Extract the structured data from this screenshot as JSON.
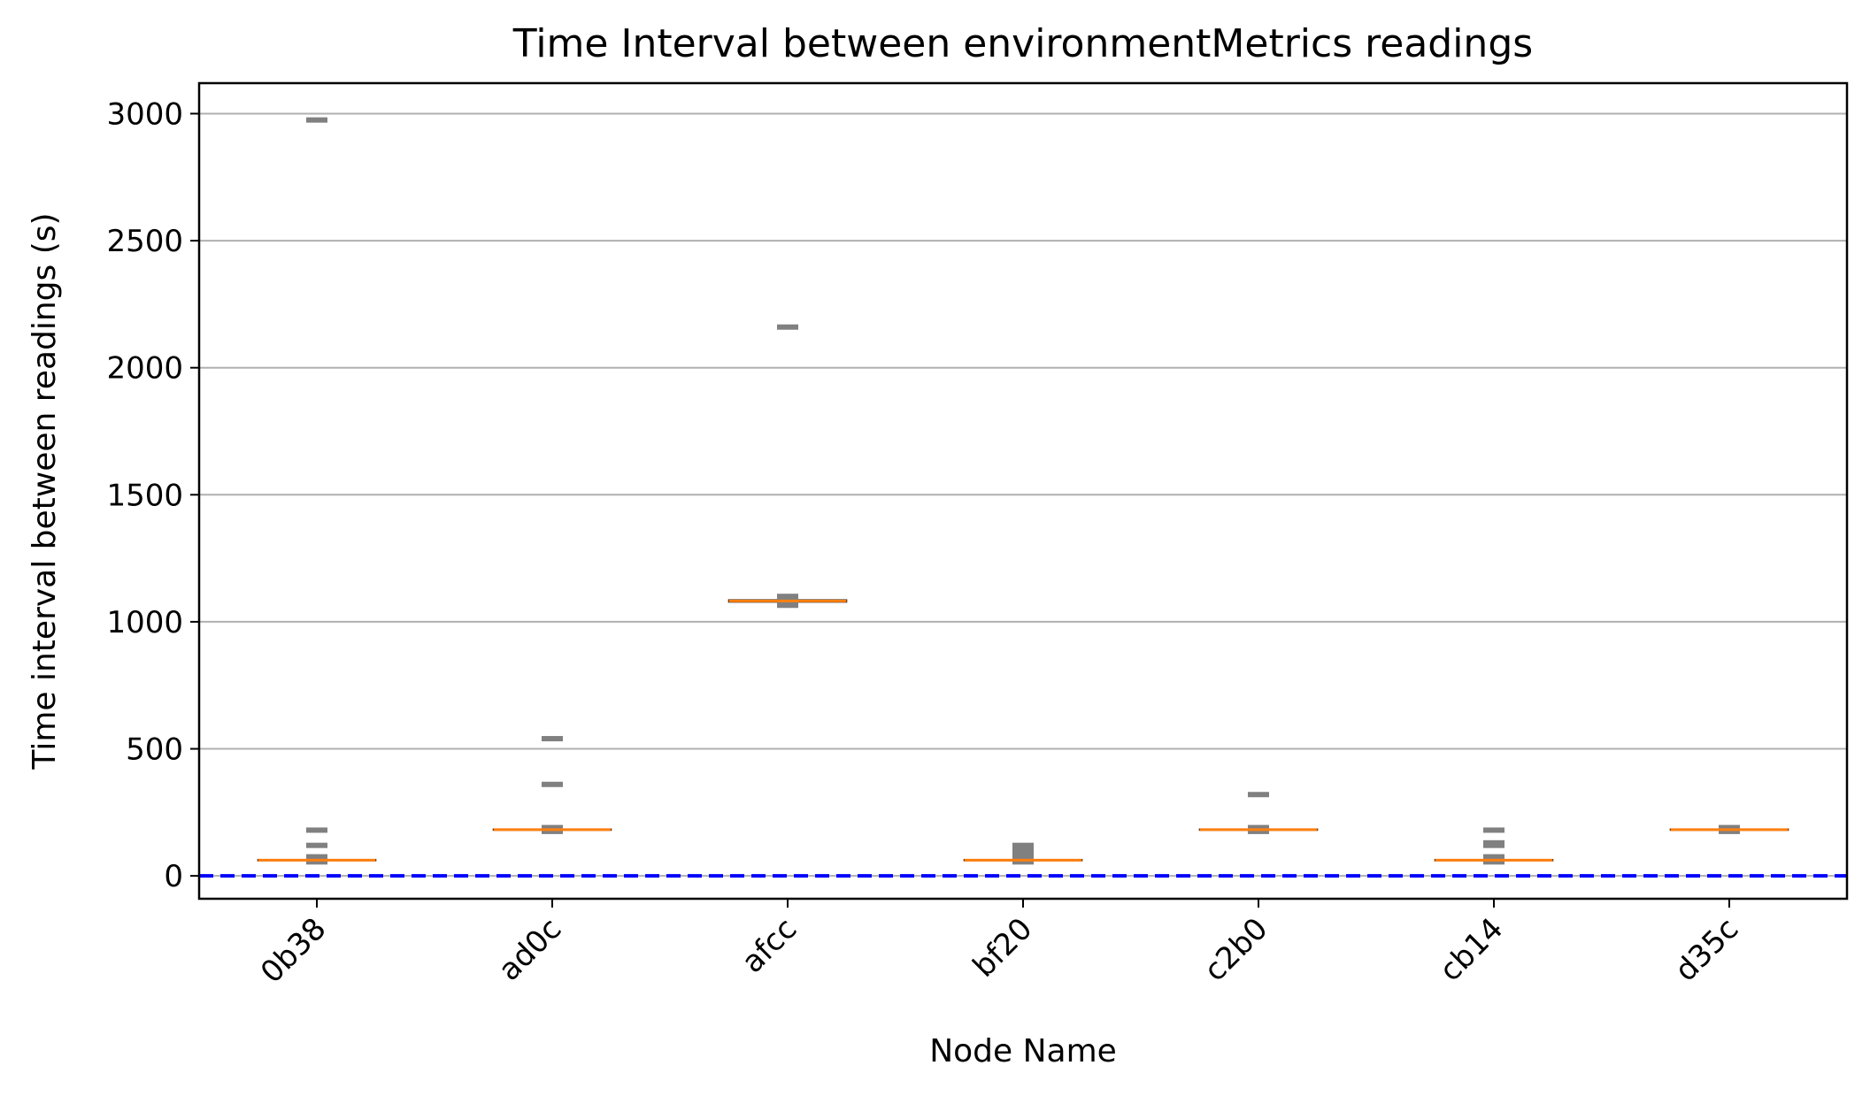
{
  "chart_data": {
    "type": "box",
    "title": "Time Interval between environmentMetrics readings",
    "xlabel": "Node Name",
    "ylabel": "Time interval between readings (s)",
    "ylim": [
      -90,
      3120
    ],
    "yticks": [
      0,
      500,
      1000,
      1500,
      2000,
      2500,
      3000
    ],
    "grid": "y",
    "categories": [
      "0b38",
      "ad0c",
      "afcc",
      "bf20",
      "c2b0",
      "cb14",
      "d35c"
    ],
    "boxes": [
      {
        "category": "0b38",
        "q1": 60,
        "median": 62,
        "q3": 64,
        "whisker_low": 60,
        "whisker_high": 64,
        "outliers": [
          2975,
          180,
          120,
          75,
          70,
          66,
          55
        ]
      },
      {
        "category": "ad0c",
        "q1": 180,
        "median": 182,
        "q3": 184,
        "whisker_low": 180,
        "whisker_high": 184,
        "outliers": [
          540,
          360,
          190,
          188,
          175
        ]
      },
      {
        "category": "afcc",
        "q1": 1078,
        "median": 1082,
        "q3": 1086,
        "whisker_low": 1078,
        "whisker_high": 1086,
        "outliers": [
          2160,
          1100,
          1095,
          1070,
          1065
        ]
      },
      {
        "category": "bf20",
        "q1": 60,
        "median": 62,
        "q3": 64,
        "whisker_low": 60,
        "whisker_high": 64,
        "outliers": [
          120,
          110,
          100,
          90,
          80,
          70,
          55
        ]
      },
      {
        "category": "c2b0",
        "q1": 180,
        "median": 182,
        "q3": 184,
        "whisker_low": 180,
        "whisker_high": 184,
        "outliers": [
          320,
          190,
          175
        ]
      },
      {
        "category": "cb14",
        "q1": 60,
        "median": 62,
        "q3": 64,
        "whisker_low": 60,
        "whisker_high": 64,
        "outliers": [
          180,
          130,
          120,
          75,
          70,
          55
        ]
      },
      {
        "category": "d35c",
        "q1": 180,
        "median": 182,
        "q3": 184,
        "whisker_low": 180,
        "whisker_high": 184,
        "outliers": [
          190,
          175
        ]
      }
    ],
    "reference_line": {
      "y": 0,
      "style": "dashed",
      "color": "#0000ff"
    },
    "colors": {
      "median": "#ff7f0e",
      "box": "#000000",
      "outlier": "#808080",
      "grid": "#b0b0b0"
    }
  }
}
